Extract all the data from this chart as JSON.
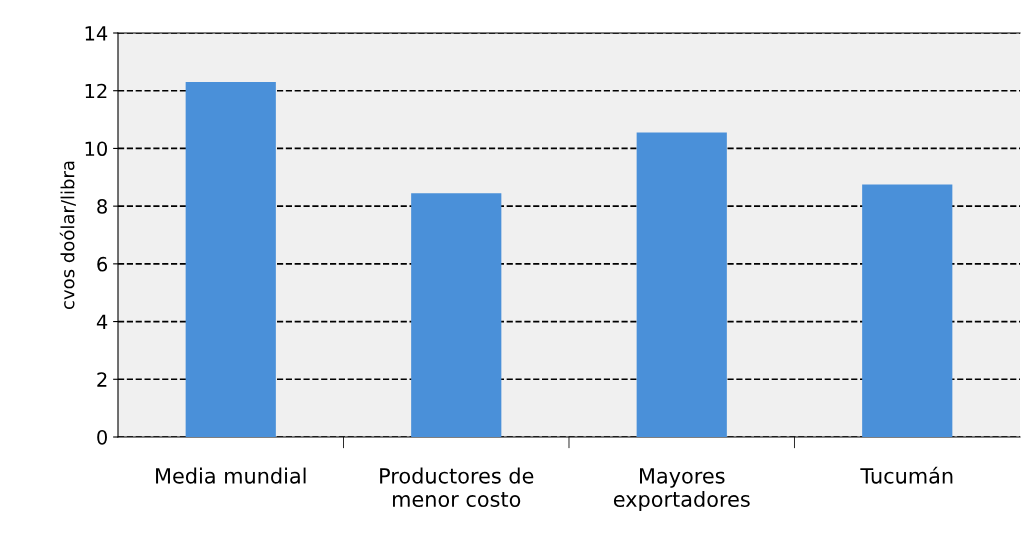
{
  "chart_data": {
    "type": "bar",
    "ylabel": "cvos doólar/libra",
    "categories": [
      "Media mundial",
      "Productores de\nmenor costo",
      "Mayores\nexportadores",
      "Tucumán"
    ],
    "series": [
      {
        "color": "#4a90d9",
        "values": [
          12.3,
          8.45,
          10.55,
          8.75
        ]
      }
    ],
    "ylim": [
      0,
      14
    ],
    "yticks": [
      0,
      2,
      4,
      6,
      8,
      10,
      12,
      14
    ],
    "grid": "y",
    "line_style": "dashed"
  }
}
